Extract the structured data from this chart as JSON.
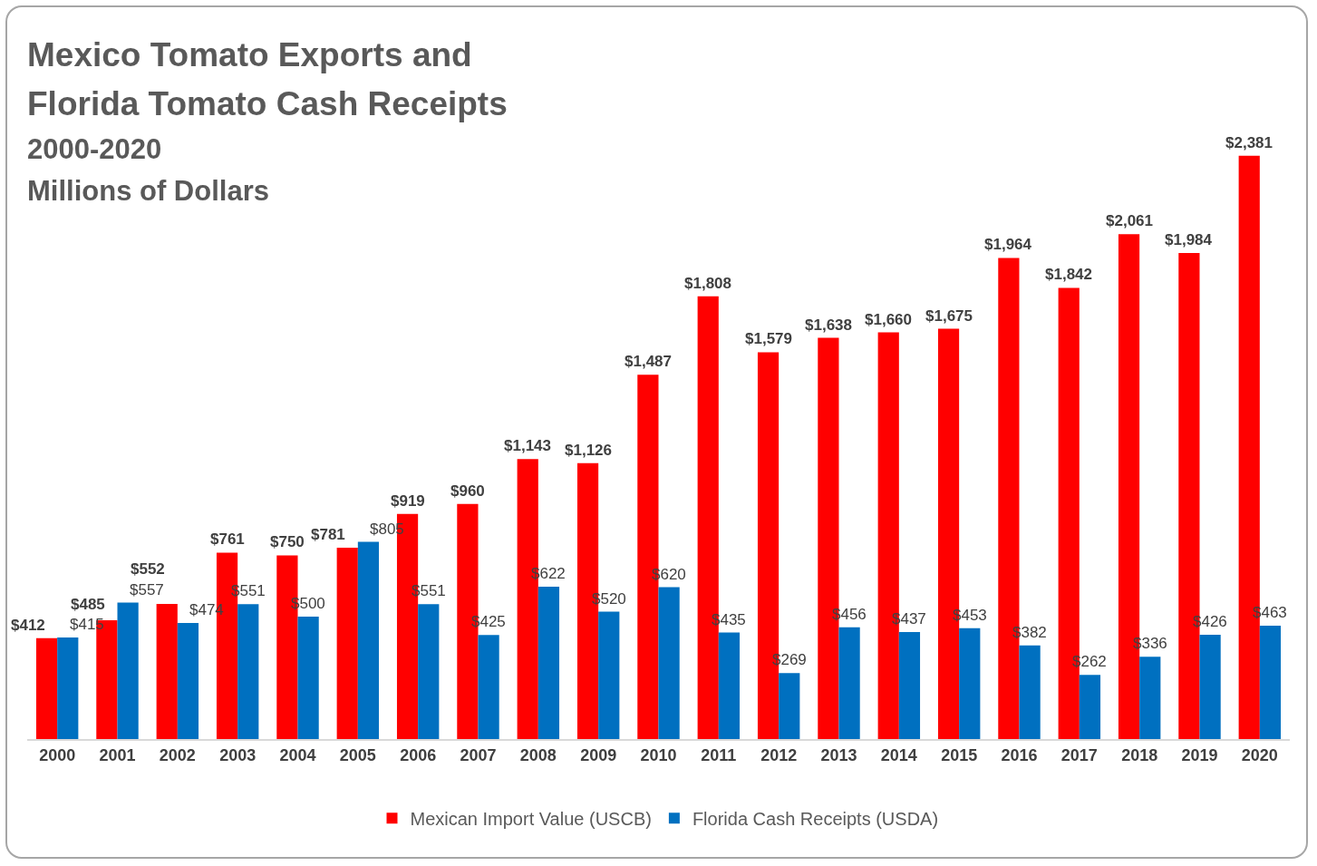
{
  "chart_data": {
    "type": "bar",
    "title": "Mexico Tomato Exports and Florida Tomato Cash Receipts",
    "subtitle": "2000-2020",
    "ylabel": "Millions of Dollars",
    "categories": [
      "2000",
      "2001",
      "2002",
      "2003",
      "2004",
      "2005",
      "2006",
      "2007",
      "2008",
      "2009",
      "2010",
      "2011",
      "2012",
      "2013",
      "2014",
      "2015",
      "2016",
      "2017",
      "2018",
      "2019",
      "2020"
    ],
    "series": [
      {
        "name": "Mexican Import Value (USCB)",
        "color": "#ff0000",
        "values": [
          412,
          485,
          552,
          761,
          750,
          781,
          919,
          960,
          1143,
          1126,
          1487,
          1808,
          1579,
          1638,
          1660,
          1675,
          1964,
          1842,
          2061,
          1984,
          2381
        ],
        "value_labels": [
          "$412",
          "$485",
          "$552",
          "$761",
          "$750",
          "$781",
          "$919",
          "$960",
          "$1,143",
          "$1,126",
          "$1,487",
          "$1,808",
          "$1,579",
          "$1,638",
          "$1,660",
          "$1,675",
          "$1,964",
          "$1,842",
          "$2,061",
          "$1,984",
          "$2,381"
        ]
      },
      {
        "name": "Florida Cash Receipts (USDA)",
        "color": "#0070c0",
        "values": [
          415,
          557,
          474,
          551,
          500,
          805,
          551,
          425,
          622,
          520,
          620,
          435,
          269,
          456,
          437,
          453,
          382,
          262,
          336,
          426,
          463
        ],
        "value_labels": [
          "$415",
          "$557",
          "$474",
          "$551",
          "$500",
          "$805",
          "$551",
          "$425",
          "$622",
          "$520",
          "$620",
          "$435",
          "$269",
          "$456",
          "$437",
          "$453",
          "$382",
          "$262",
          "$336",
          "$426",
          "$463"
        ]
      }
    ],
    "grid": false,
    "legend": "bottom"
  }
}
